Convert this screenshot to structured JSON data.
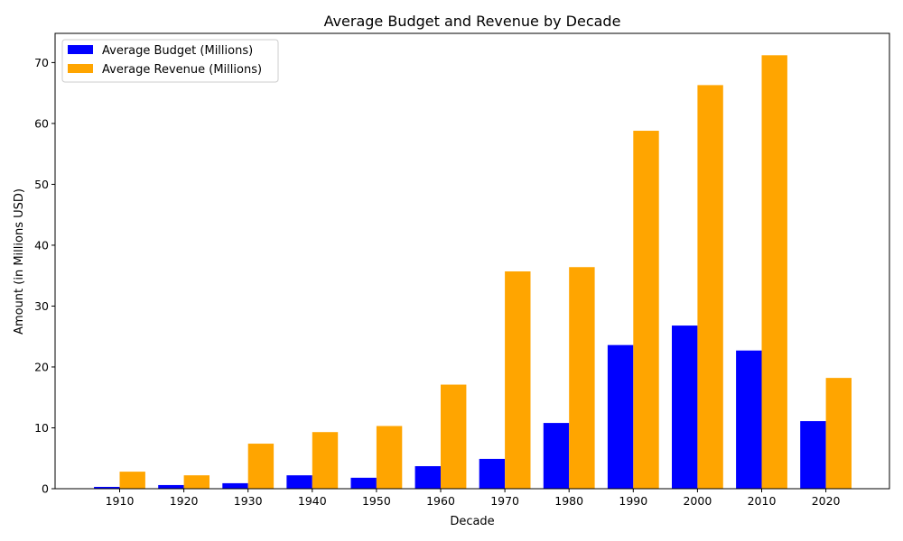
{
  "chart_data": {
    "type": "bar",
    "title": "Average Budget and Revenue by Decade",
    "xlabel": "Decade",
    "ylabel": "Amount (in Millions USD)",
    "categories": [
      "1910",
      "1920",
      "1930",
      "1940",
      "1950",
      "1960",
      "1970",
      "1980",
      "1990",
      "2000",
      "2010",
      "2020"
    ],
    "series": [
      {
        "name": "Average Budget (Millions)",
        "color": "#0000ff",
        "values": [
          0.3,
          0.6,
          0.9,
          2.2,
          1.8,
          3.7,
          4.9,
          10.8,
          23.6,
          26.8,
          22.7,
          11.1
        ]
      },
      {
        "name": "Average Revenue (Millions)",
        "color": "#ffa500",
        "values": [
          2.8,
          2.2,
          7.4,
          9.3,
          10.3,
          17.1,
          35.7,
          36.4,
          58.8,
          66.3,
          71.2,
          18.2
        ]
      }
    ],
    "ylim": [
      0,
      74.8
    ],
    "yticks": [
      0,
      10,
      20,
      30,
      40,
      50,
      60,
      70
    ],
    "grid": false,
    "legend_position": "upper-left"
  }
}
